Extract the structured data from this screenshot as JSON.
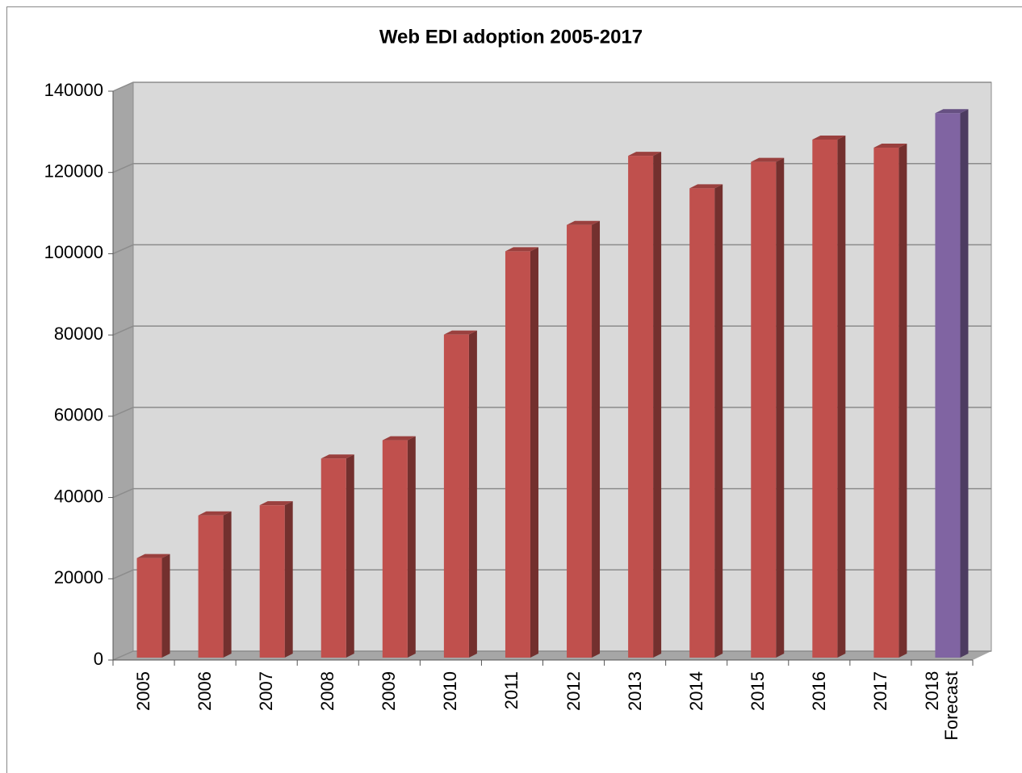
{
  "chart_data": {
    "type": "bar",
    "title": "Web EDI adoption 2005-2017",
    "categories": [
      "2005",
      "2006",
      "2007",
      "2008",
      "2009",
      "2010",
      "2011",
      "2012",
      "2013",
      "2014",
      "2015",
      "2016",
      "2017",
      "2018\nForecast"
    ],
    "values": [
      24500,
      35000,
      37500,
      49000,
      53500,
      79500,
      100000,
      106500,
      123500,
      115500,
      122000,
      127500,
      125500,
      134000
    ],
    "colors": [
      "#c0504d",
      "#c0504d",
      "#c0504d",
      "#c0504d",
      "#c0504d",
      "#c0504d",
      "#c0504d",
      "#c0504d",
      "#c0504d",
      "#c0504d",
      "#c0504d",
      "#c0504d",
      "#c0504d",
      "#8064a2"
    ],
    "ylim": [
      0,
      140000
    ],
    "yticks": [
      0,
      20000,
      40000,
      60000,
      80000,
      100000,
      120000,
      140000
    ],
    "grid": true
  }
}
